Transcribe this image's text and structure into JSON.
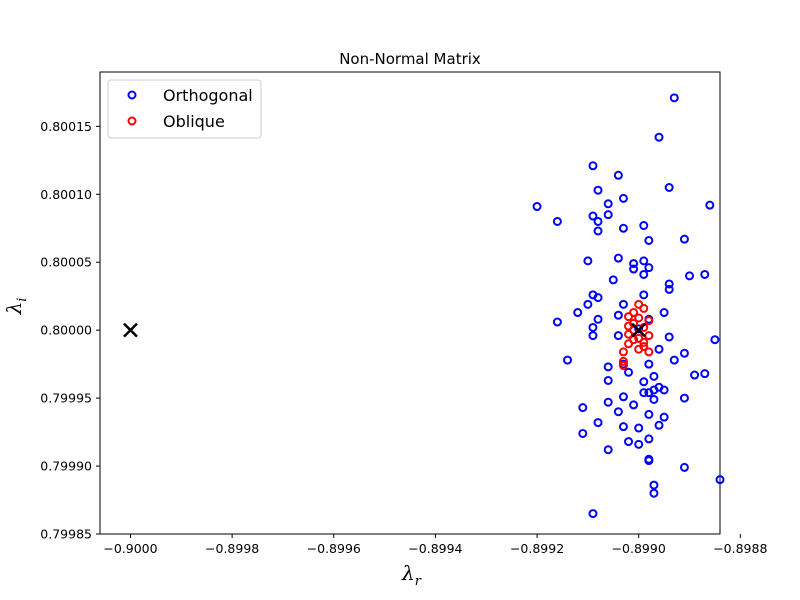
{
  "chart_data": {
    "type": "scatter",
    "title": "Non-Normal Matrix",
    "xlabel": {
      "base": "λ",
      "sub": "r"
    },
    "ylabel": {
      "base": "λ",
      "sub": "i"
    },
    "xlim": [
      -0.90006,
      -0.89884
    ],
    "ylim": [
      0.79985,
      0.80019
    ],
    "x_ticks": [
      -0.9,
      -0.8998,
      -0.8996,
      -0.8994,
      -0.8992,
      -0.899,
      -0.8988
    ],
    "x_tick_labels": [
      "−0.9000",
      "−0.8998",
      "−0.8996",
      "−0.8994",
      "−0.8992",
      "−0.8990",
      "−0.8988"
    ],
    "y_ticks": [
      0.79985,
      0.7999,
      0.79995,
      0.8,
      0.80005,
      0.8001,
      0.80015
    ],
    "y_tick_labels": [
      "0.79985",
      "0.79990",
      "0.79995",
      "0.80000",
      "0.80005",
      "0.80010",
      "0.80015"
    ],
    "grid": false,
    "legend_position": "top-left",
    "series": [
      {
        "name": "Orthogonal",
        "color": "#0000ff",
        "marker": "hollow-circle",
        "points": [
          [
            -0.89893,
            0.800171
          ],
          [
            -0.89896,
            0.800142
          ],
          [
            -0.89909,
            0.800121
          ],
          [
            -0.89904,
            0.800114
          ],
          [
            -0.89894,
            0.800105
          ],
          [
            -0.89908,
            0.800103
          ],
          [
            -0.89903,
            0.800097
          ],
          [
            -0.89906,
            0.800093
          ],
          [
            -0.8992,
            0.800091
          ],
          [
            -0.89886,
            0.800092
          ],
          [
            -0.89909,
            0.800084
          ],
          [
            -0.89906,
            0.800085
          ],
          [
            -0.89908,
            0.80008
          ],
          [
            -0.89916,
            0.80008
          ],
          [
            -0.89899,
            0.800077
          ],
          [
            -0.89903,
            0.800075
          ],
          [
            -0.89908,
            0.800073
          ],
          [
            -0.89891,
            0.800067
          ],
          [
            -0.89898,
            0.800066
          ],
          [
            -0.89904,
            0.800053
          ],
          [
            -0.8991,
            0.800051
          ],
          [
            -0.89899,
            0.800051
          ],
          [
            -0.89901,
            0.800049
          ],
          [
            -0.89898,
            0.800046
          ],
          [
            -0.89901,
            0.800045
          ],
          [
            -0.8989,
            0.80004
          ],
          [
            -0.89887,
            0.800041
          ],
          [
            -0.89899,
            0.800041
          ],
          [
            -0.89905,
            0.800037
          ],
          [
            -0.89894,
            0.800034
          ],
          [
            -0.89894,
            0.80003
          ],
          [
            -0.89909,
            0.800026
          ],
          [
            -0.89908,
            0.800024
          ],
          [
            -0.89899,
            0.800026
          ],
          [
            -0.89903,
            0.800019
          ],
          [
            -0.8991,
            0.800019
          ],
          [
            -0.89912,
            0.800013
          ],
          [
            -0.89904,
            0.800011
          ],
          [
            -0.89895,
            0.800013
          ],
          [
            -0.89898,
            0.800008
          ],
          [
            -0.89908,
            0.800008
          ],
          [
            -0.89916,
            0.800006
          ],
          [
            -0.89909,
            0.800002
          ],
          [
            -0.899,
            0.800001
          ],
          [
            -0.89904,
            0.799996
          ],
          [
            -0.89909,
            0.799996
          ],
          [
            -0.89894,
            0.799995
          ],
          [
            -0.89885,
            0.799993
          ],
          [
            -0.89896,
            0.799986
          ],
          [
            -0.89891,
            0.799983
          ],
          [
            -0.89893,
            0.799978
          ],
          [
            -0.89914,
            0.799978
          ],
          [
            -0.89903,
            0.799975
          ],
          [
            -0.89898,
            0.799975
          ],
          [
            -0.89906,
            0.799973
          ],
          [
            -0.89902,
            0.799969
          ],
          [
            -0.89889,
            0.799967
          ],
          [
            -0.89887,
            0.799968
          ],
          [
            -0.89897,
            0.799966
          ],
          [
            -0.89906,
            0.799963
          ],
          [
            -0.89899,
            0.799962
          ],
          [
            -0.89896,
            0.799958
          ],
          [
            -0.89895,
            0.799956
          ],
          [
            -0.89897,
            0.799956
          ],
          [
            -0.89898,
            0.799954
          ],
          [
            -0.89899,
            0.799954
          ],
          [
            -0.89891,
            0.79995
          ],
          [
            -0.89906,
            0.799947
          ],
          [
            -0.89901,
            0.799945
          ],
          [
            -0.89897,
            0.799949
          ],
          [
            -0.89903,
            0.799951
          ],
          [
            -0.89911,
            0.799943
          ],
          [
            -0.89904,
            0.79994
          ],
          [
            -0.89898,
            0.799938
          ],
          [
            -0.89895,
            0.799936
          ],
          [
            -0.89908,
            0.799932
          ],
          [
            -0.89903,
            0.799929
          ],
          [
            -0.899,
            0.799928
          ],
          [
            -0.89896,
            0.79993
          ],
          [
            -0.89911,
            0.799924
          ],
          [
            -0.89898,
            0.79992
          ],
          [
            -0.89902,
            0.799918
          ],
          [
            -0.899,
            0.799916
          ],
          [
            -0.89906,
            0.799912
          ],
          [
            -0.89898,
            0.799905
          ],
          [
            -0.89898,
            0.799904
          ],
          [
            -0.89891,
            0.799899
          ],
          [
            -0.89884,
            0.79989
          ],
          [
            -0.89897,
            0.799886
          ],
          [
            -0.89897,
            0.79988
          ],
          [
            -0.89909,
            0.799865
          ]
        ]
      },
      {
        "name": "Oblique",
        "color": "#ff0000",
        "marker": "hollow-circle",
        "points": [
          [
            -0.899,
            0.800019
          ],
          [
            -0.89899,
            0.800016
          ],
          [
            -0.89901,
            0.800013
          ],
          [
            -0.89902,
            0.80001
          ],
          [
            -0.899,
            0.800009
          ],
          [
            -0.89898,
            0.800007
          ],
          [
            -0.89901,
            0.800005
          ],
          [
            -0.89902,
            0.800003
          ],
          [
            -0.89899,
            0.800002
          ],
          [
            -0.89901,
            0.8
          ],
          [
            -0.89902,
            0.799997
          ],
          [
            -0.89898,
            0.799996
          ],
          [
            -0.899,
            0.799994
          ],
          [
            -0.89901,
            0.799993
          ],
          [
            -0.89899,
            0.799991
          ],
          [
            -0.89902,
            0.79999
          ],
          [
            -0.89899,
            0.799988
          ],
          [
            -0.899,
            0.799986
          ],
          [
            -0.89898,
            0.799984
          ],
          [
            -0.89903,
            0.799984
          ],
          [
            -0.89903,
            0.799977
          ],
          [
            -0.89903,
            0.799974
          ]
        ]
      }
    ],
    "markers": [
      {
        "name": "x-marker",
        "x": -0.9,
        "y": 0.8,
        "color": "#000000"
      },
      {
        "name": "x-marker",
        "x": -0.899,
        "y": 0.8,
        "color": "#000000"
      }
    ]
  }
}
